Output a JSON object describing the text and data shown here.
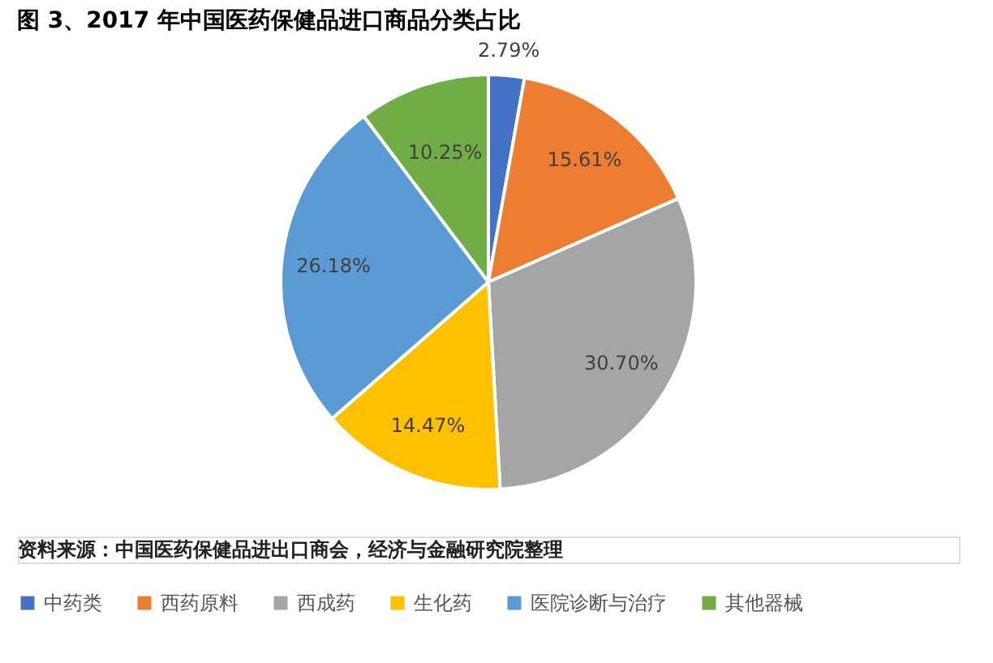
{
  "chart_data": {
    "type": "pie",
    "title": "图 3、2017 年中国医药保健品进口商品分类占比",
    "categories": [
      "中药类",
      "西药原料",
      "西成药",
      "生化药",
      "医院诊断与治疗",
      "其他器械"
    ],
    "values": [
      2.79,
      15.61,
      30.7,
      14.47,
      26.18,
      10.25
    ],
    "colors": [
      "#4472c4",
      "#ed7d31",
      "#a5a5a5",
      "#ffc000",
      "#5b9bd5",
      "#70ad47"
    ],
    "value_labels": [
      "2.79%",
      "15.61%",
      "30.70%",
      "14.47%",
      "26.18%",
      "10.25%"
    ],
    "legend": "bottom",
    "annotations": [
      "资料来源：中国医药保健品进出口商会，经济与金融研究院整理"
    ]
  }
}
